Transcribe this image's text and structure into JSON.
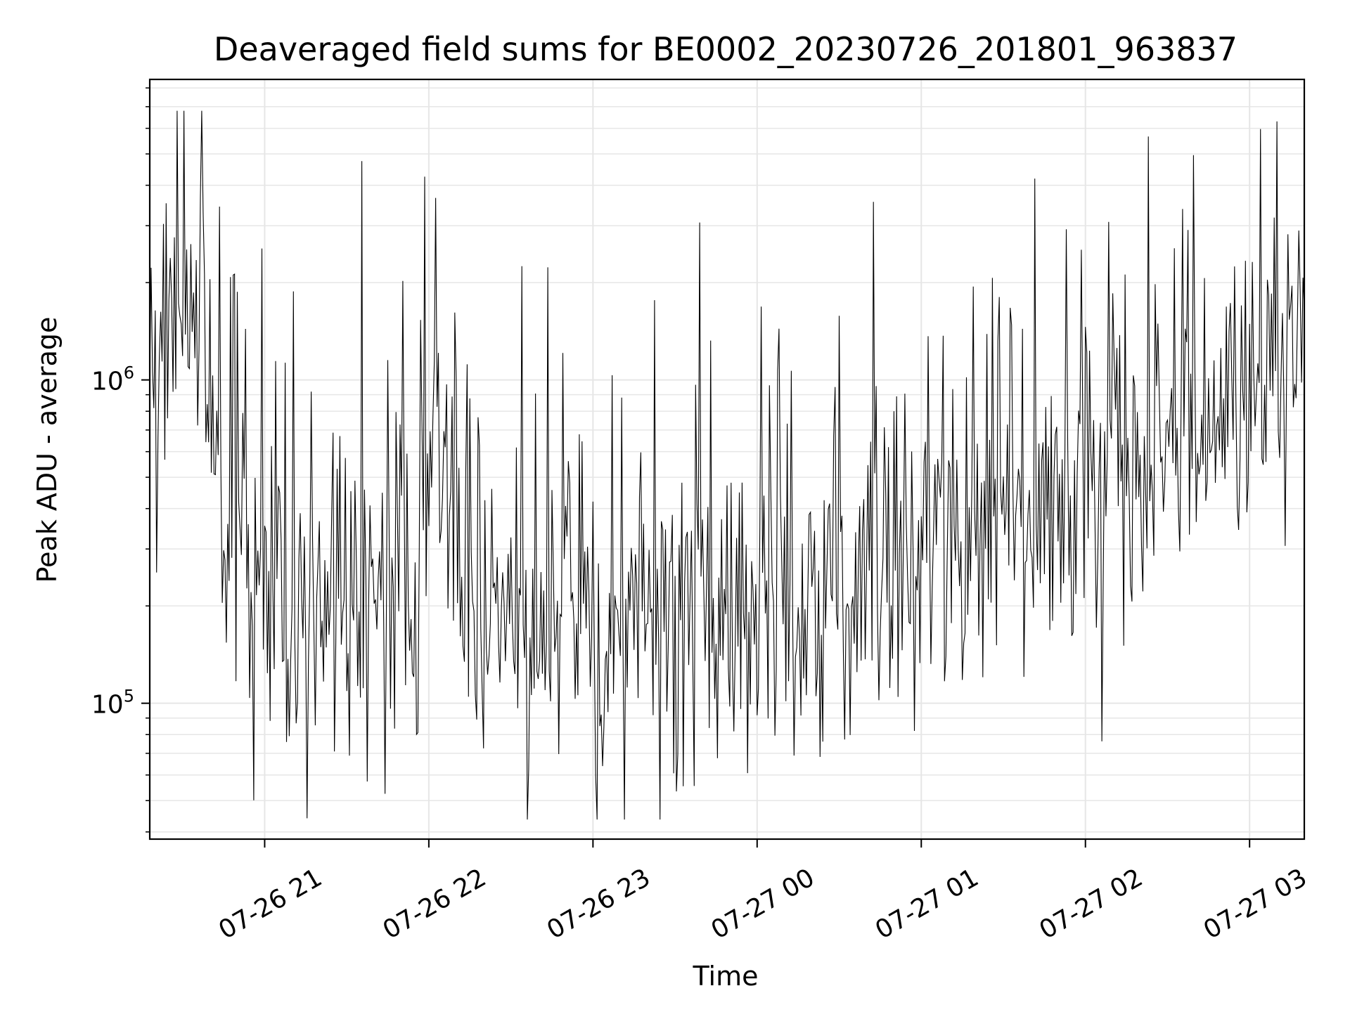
{
  "chart_data": {
    "type": "line",
    "title": "Deaveraged field sums for BE0002_20230726_201801_963837",
    "xlabel": "Time",
    "ylabel": "Peak ADU - average",
    "y_scale": "log",
    "ylim": [
      38000,
      8500000
    ],
    "xlim": [
      "07-26 20:18",
      "07-27 03:20"
    ],
    "grid": true,
    "legend": "none",
    "line_color": "#000000",
    "grid_color": "#e6e6e6",
    "x_ticks": [
      {
        "t": "07-26 21:00",
        "label": "07-26 21"
      },
      {
        "t": "07-26 22:00",
        "label": "07-26 22"
      },
      {
        "t": "07-26 23:00",
        "label": "07-26 23"
      },
      {
        "t": "07-27 00:00",
        "label": "07-27 00"
      },
      {
        "t": "07-27 01:00",
        "label": "07-27 01"
      },
      {
        "t": "07-27 02:00",
        "label": "07-27 02"
      },
      {
        "t": "07-27 03:00",
        "label": "07-27 03"
      }
    ],
    "y_ticks": [
      {
        "value": 100000,
        "base": "10",
        "exp": "5"
      },
      {
        "value": 1000000,
        "base": "10",
        "exp": "6"
      }
    ],
    "series": [
      {
        "sampling": "one point per minute from 07-26 20:18 to 07-27 03:20 (envelope shown)",
        "envelope_minute_marks": [
          "07-26 20:18",
          "07-26 20:25",
          "07-26 20:33",
          "07-26 20:40",
          "07-26 20:46",
          "07-26 20:55",
          "07-26 21:10",
          "07-26 21:30",
          "07-26 21:55",
          "07-26 22:02",
          "07-26 22:10",
          "07-26 22:30",
          "07-26 22:50",
          "07-26 23:05",
          "07-26 23:20",
          "07-26 23:40",
          "07-27 00:00",
          "07-27 00:30",
          "07-27 01:00",
          "07-27 01:20",
          "07-27 01:30",
          "07-27 01:45",
          "07-27 02:00",
          "07-27 02:20",
          "07-27 02:40",
          "07-27 03:00",
          "07-27 03:20"
        ],
        "envelope_baseline": [
          1400000,
          1500000,
          1350000,
          1000000,
          350000,
          220000,
          200000,
          240000,
          230000,
          700000,
          280000,
          180000,
          170000,
          160000,
          155000,
          185000,
          200000,
          220000,
          240000,
          300000,
          420000,
          330000,
          480000,
          560000,
          750000,
          900000,
          850000
        ]
      }
    ]
  }
}
